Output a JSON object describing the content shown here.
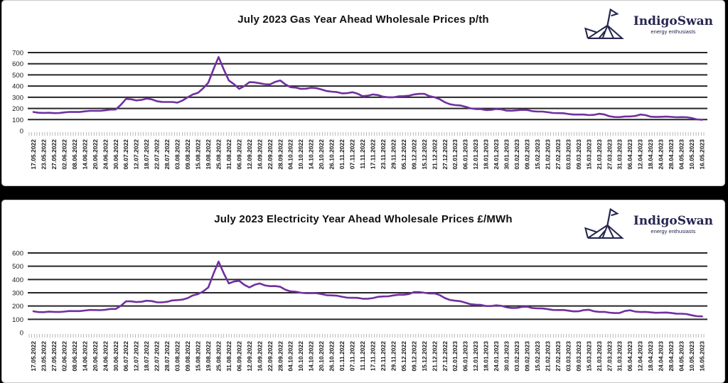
{
  "logo": {
    "name": "IndigoSwan",
    "tagline": "energy enthusiasts",
    "color": "#262650"
  },
  "style": {
    "line_color": "#7030a0",
    "grid_color": "#262626",
    "tick_color": "#9a9a9a",
    "label_color": "#1a1a1a",
    "panel_background": "#ffffff",
    "page_background": "#000000"
  },
  "chart_data": [
    {
      "type": "line",
      "title": "July 2023 Gas Year Ahead Wholesale Prices p/th",
      "ylabel": "p/th",
      "ylim": [
        0,
        700
      ],
      "yticks": [
        0,
        100,
        200,
        300,
        400,
        500,
        600,
        700
      ],
      "grid": true,
      "legend": "none",
      "categories": [
        "17.05.2022",
        "23.05.2022",
        "27.05.2022",
        "02.06.2022",
        "08.06.2022",
        "14.06.2022",
        "20.06.2022",
        "24.06.2022",
        "30.06.2022",
        "06.07.2022",
        "12.07.2022",
        "18.07.2022",
        "22.07.2022",
        "28.07.2022",
        "03.08.2022",
        "09.08.2022",
        "15.08.2022",
        "19.08.2022",
        "25.08.2022",
        "31.08.2022",
        "06.09.2022",
        "12.09.2022",
        "16.09.2022",
        "22.09.2022",
        "28.09.2022",
        "04.10.2022",
        "10.10.2022",
        "14.10.2022",
        "20.10.2022",
        "26.10.2022",
        "01.11.2022",
        "07.11.2022",
        "11.11.2022",
        "17.11.2022",
        "23.11.2022",
        "29.11.2022",
        "05.12.2022",
        "09.12.2022",
        "15.12.2022",
        "21.12.2022",
        "27.12.2022",
        "02.01.2023",
        "06.01.2023",
        "12.01.2023",
        "18.01.2023",
        "24.01.2023",
        "30.01.2023",
        "03.02.2023",
        "09.02.2023",
        "15.02.2023",
        "21.02.2023",
        "27.02.2023",
        "03.03.2023",
        "09.03.2023",
        "15.03.2023",
        "21.03.2023",
        "27.03.2023",
        "31.03.2023",
        "06.04.2023",
        "12.04.2023",
        "18.04.2023",
        "24.04.2023",
        "28.04.2023",
        "04.05.2023",
        "10.05.2023",
        "16.05.2023"
      ],
      "values": [
        168,
        160,
        158,
        164,
        168,
        174,
        178,
        183,
        190,
        285,
        272,
        288,
        265,
        258,
        252,
        300,
        340,
        430,
        660,
        450,
        375,
        435,
        425,
        415,
        450,
        390,
        375,
        385,
        370,
        350,
        335,
        345,
        310,
        325,
        305,
        300,
        310,
        325,
        330,
        300,
        255,
        230,
        215,
        195,
        185,
        195,
        180,
        183,
        186,
        172,
        166,
        158,
        150,
        145,
        140,
        152,
        130,
        122,
        128,
        145,
        126,
        125,
        124,
        122,
        114,
        98
      ]
    },
    {
      "type": "line",
      "title": "July 2023 Electricity Year Ahead Wholesale Prices £/MWh",
      "ylabel": "£/MWh",
      "ylim": [
        0,
        600
      ],
      "yticks": [
        0,
        100,
        200,
        300,
        400,
        500,
        600
      ],
      "grid": true,
      "legend": "none",
      "categories": [
        "17.05.2022",
        "23.05.2022",
        "27.05.2022",
        "02.06.2022",
        "08.06.2022",
        "14.06.2022",
        "20.06.2022",
        "24.06.2022",
        "30.06.2022",
        "06.07.2022",
        "12.07.2022",
        "18.07.2022",
        "22.07.2022",
        "28.07.2022",
        "03.08.2022",
        "09.08.2022",
        "15.08.2022",
        "19.08.2022",
        "25.08.2022",
        "31.08.2022",
        "06.09.2022",
        "12.09.2022",
        "16.09.2022",
        "22.09.2022",
        "28.09.2022",
        "04.10.2022",
        "10.10.2022",
        "14.10.2022",
        "20.10.2022",
        "26.10.2022",
        "01.11.2022",
        "07.11.2022",
        "11.11.2022",
        "17.11.2022",
        "23.11.2022",
        "29.11.2022",
        "05.12.2022",
        "09.12.2022",
        "15.12.2022",
        "21.12.2022",
        "27.12.2022",
        "02.01.2023",
        "06.01.2023",
        "12.01.2023",
        "18.01.2023",
        "24.01.2023",
        "30.01.2023",
        "03.02.2023",
        "09.02.2023",
        "15.02.2023",
        "21.02.2023",
        "27.02.2023",
        "03.03.2023",
        "09.03.2023",
        "15.03.2023",
        "21.03.2023",
        "27.03.2023",
        "31.03.2023",
        "06.04.2023",
        "12.04.2023",
        "18.04.2023",
        "24.04.2023",
        "28.04.2023",
        "04.05.2023",
        "10.05.2023",
        "16.05.2023"
      ],
      "values": [
        160,
        154,
        156,
        158,
        162,
        166,
        170,
        172,
        178,
        235,
        230,
        240,
        228,
        232,
        245,
        260,
        290,
        340,
        535,
        370,
        390,
        340,
        370,
        350,
        345,
        310,
        300,
        298,
        290,
        280,
        270,
        262,
        255,
        260,
        272,
        280,
        285,
        305,
        300,
        295,
        260,
        240,
        225,
        210,
        200,
        205,
        190,
        186,
        195,
        182,
        176,
        170,
        165,
        160,
        172,
        156,
        150,
        148,
        168,
        155,
        152,
        150,
        148,
        142,
        130,
        122
      ]
    }
  ]
}
